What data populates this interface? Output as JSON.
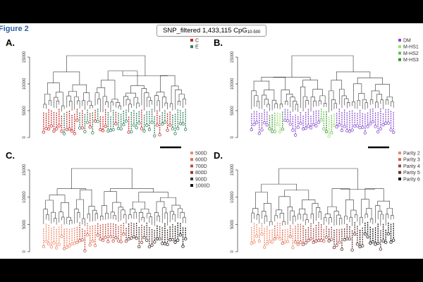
{
  "figure": {
    "label": "Figure 2",
    "title_main": "SNP_filtered 1,433,115 CpG",
    "title_subscript": "10-500"
  },
  "panels": [
    {
      "id": "A",
      "letter": "A.",
      "y_ticks": [
        "0",
        "5000",
        "10000",
        "15000"
      ],
      "legend": [
        {
          "label": "C",
          "color": "#c62828"
        },
        {
          "label": "E",
          "color": "#2e7d5b"
        }
      ]
    },
    {
      "id": "B",
      "letter": "B.",
      "y_ticks": [
        "0",
        "5000",
        "10000",
        "15000"
      ],
      "legend": [
        {
          "label": "DM",
          "color": "#8a4fd1"
        },
        {
          "label": "M-HS1",
          "color": "#9be06a"
        },
        {
          "label": "M-HS2",
          "color": "#5cc24a"
        },
        {
          "label": "M-HS3",
          "color": "#3a8f2e"
        }
      ]
    },
    {
      "id": "C",
      "letter": "C.",
      "y_ticks": [
        "0",
        "5000",
        "10000",
        "15000"
      ],
      "legend": [
        {
          "label": "500D",
          "color": "#f08a6a"
        },
        {
          "label": "600D",
          "color": "#e06a50"
        },
        {
          "label": "700D",
          "color": "#c04a3a"
        },
        {
          "label": "800D",
          "color": "#8a3a30"
        },
        {
          "label": "900D",
          "color": "#4a3030"
        },
        {
          "label": "1000D",
          "color": "#111111"
        }
      ]
    },
    {
      "id": "D",
      "letter": "D.",
      "y_ticks": [
        "0",
        "5000",
        "10000",
        "15000"
      ],
      "legend": [
        {
          "label": "Parity 2",
          "color": "#f08a6a"
        },
        {
          "label": "Parity 3",
          "color": "#d0604a"
        },
        {
          "label": "Parity 4",
          "color": "#a04040"
        },
        {
          "label": "Parity 5",
          "color": "#603030"
        },
        {
          "label": "Parity 6",
          "color": "#111111"
        }
      ]
    }
  ]
}
